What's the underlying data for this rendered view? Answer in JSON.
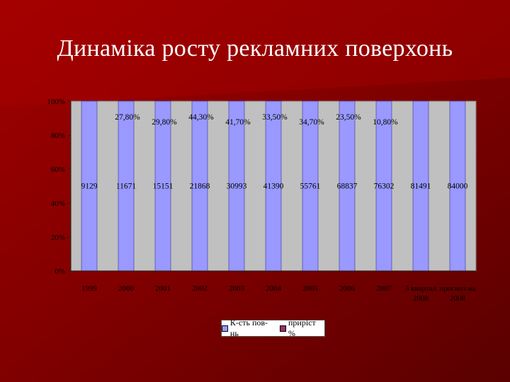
{
  "slide": {
    "title": "Динаміка росту рекламних поверхонь"
  },
  "colors": {
    "background": "#7a0000",
    "plot_area": "#c0c0c0",
    "bar_series": "#9999ff",
    "growth_series": "#993366"
  },
  "chart_data": {
    "type": "bar",
    "stacked_percent": true,
    "categories": [
      "1999",
      "2000",
      "2001",
      "2002",
      "2003",
      "2004",
      "2005",
      "2006",
      "2007",
      "3 квартал 2008",
      "прогноз на 2008"
    ],
    "series": [
      {
        "name": "К-сть пов-нь",
        "values": [
          9129,
          11671,
          15151,
          21868,
          30993,
          41390,
          55761,
          68837,
          76302,
          81491,
          84000
        ],
        "labels": [
          "9129",
          "11671",
          "15151",
          "21868",
          "30993",
          "41390",
          "55761",
          "68837",
          "76302",
          "81491",
          "84000"
        ]
      },
      {
        "name": "приріст %",
        "values": [
          null,
          27.8,
          29.8,
          44.3,
          41.7,
          33.5,
          34.7,
          23.5,
          10.8,
          null,
          null
        ],
        "labels": [
          "",
          "27,80%",
          "29,80%",
          "44,30%",
          "41,70%",
          "33,50%",
          "34,70%",
          "23,50%",
          "10,80%",
          "",
          ""
        ]
      }
    ],
    "y_ticks": [
      "0%",
      "20%",
      "40%",
      "60%",
      "80%",
      "100%"
    ],
    "ylim": [
      0,
      100
    ],
    "grid": false,
    "legend_position": "bottom"
  }
}
